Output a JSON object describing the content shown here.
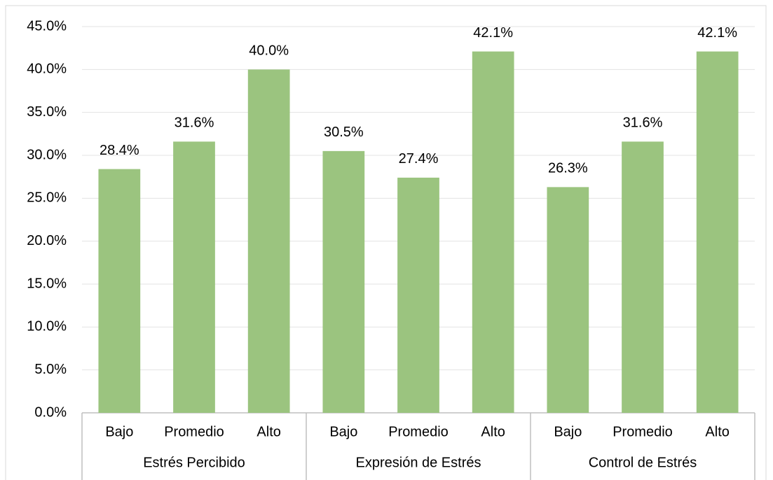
{
  "chart_data": {
    "type": "bar",
    "categories": [
      "Bajo",
      "Promedio",
      "Alto",
      "Bajo",
      "Promedio",
      "Alto",
      "Bajo",
      "Promedio",
      "Alto"
    ],
    "group_labels": [
      "Estrés Percibido",
      "Expresión de Estrés",
      "Control de Estrés"
    ],
    "values": [
      28.4,
      31.6,
      40.0,
      30.5,
      27.4,
      42.1,
      26.3,
      31.6,
      42.1
    ],
    "value_labels": [
      "28.4%",
      "31.6%",
      "40.0%",
      "30.5%",
      "27.4%",
      "42.1%",
      "26.3%",
      "31.6%",
      "42.1%"
    ],
    "color": "#9bc47f",
    "ylim": [
      0,
      45
    ],
    "yticks": [
      {
        "value": 0,
        "label": "0.0%"
      },
      {
        "value": 5,
        "label": "5.0%"
      },
      {
        "value": 10,
        "label": "10.0%"
      },
      {
        "value": 15,
        "label": "15.0%"
      },
      {
        "value": 20,
        "label": "20.0%"
      },
      {
        "value": 25,
        "label": "25.0%"
      },
      {
        "value": 30,
        "label": "30.0%"
      },
      {
        "value": 35,
        "label": "35.0%"
      },
      {
        "value": 40,
        "label": "40.0%"
      },
      {
        "value": 45,
        "label": "45.0%"
      }
    ],
    "grid": true
  }
}
